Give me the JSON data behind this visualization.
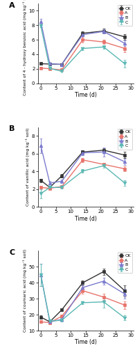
{
  "time": [
    0,
    3,
    7,
    14,
    21,
    28
  ],
  "panel_A": {
    "title": "A",
    "ylabel": "Content of 4 - hydroxy benzoic acid (mg kg⁻¹ soil)",
    "ylim": [
      0,
      11
    ],
    "yticks": [
      0,
      2,
      4,
      6,
      8,
      10
    ],
    "CK": {
      "y": [
        2.7,
        2.65,
        2.6,
        6.9,
        7.2,
        6.4
      ],
      "yerr": [
        0.15,
        0.15,
        0.15,
        0.3,
        0.3,
        0.4
      ]
    },
    "A": {
      "y": [
        2.1,
        2.0,
        1.85,
        6.0,
        5.7,
        4.8
      ],
      "yerr": [
        0.15,
        0.1,
        0.1,
        0.35,
        0.3,
        0.5
      ]
    },
    "B": {
      "y": [
        8.5,
        2.7,
        2.6,
        6.7,
        7.15,
        5.5
      ],
      "yerr": [
        0.35,
        0.15,
        0.15,
        0.25,
        0.3,
        0.4
      ]
    },
    "C": {
      "y": [
        7.9,
        2.05,
        1.65,
        4.8,
        5.0,
        2.7
      ],
      "yerr": [
        0.2,
        0.1,
        0.1,
        0.2,
        0.2,
        0.5
      ]
    }
  },
  "panel_B": {
    "title": "B",
    "ylabel": "Content of vanillic acid (mg kg⁻¹ soil)",
    "ylim": [
      0,
      9
    ],
    "yticks": [
      0,
      2,
      4,
      6,
      8
    ],
    "CK": {
      "y": [
        3.0,
        2.2,
        3.5,
        6.2,
        6.4,
        5.85
      ],
      "yerr": [
        0.2,
        0.15,
        0.2,
        0.2,
        0.2,
        0.35
      ]
    },
    "A": {
      "y": [
        2.2,
        2.1,
        2.3,
        5.3,
        4.8,
        4.3
      ],
      "yerr": [
        0.15,
        0.1,
        0.15,
        0.25,
        0.2,
        0.3
      ]
    },
    "B": {
      "y": [
        6.9,
        2.7,
        2.9,
        6.1,
        6.2,
        5.1
      ],
      "yerr": [
        0.85,
        0.2,
        0.2,
        0.25,
        0.5,
        0.35
      ]
    },
    "C": {
      "y": [
        1.5,
        2.2,
        2.2,
        4.05,
        4.65,
        2.7
      ],
      "yerr": [
        0.5,
        0.15,
        0.15,
        0.2,
        0.2,
        0.3
      ]
    }
  },
  "panel_C": {
    "title": "C",
    "ylabel": "Content of coumaric acid (mg kg⁻¹ soil)",
    "ylim": [
      10,
      60
    ],
    "yticks": [
      10,
      20,
      30,
      40,
      50
    ],
    "CK": {
      "y": [
        18.5,
        15.5,
        23.0,
        40.0,
        47.0,
        35.0
      ],
      "yerr": [
        1.0,
        0.8,
        1.0,
        1.5,
        2.0,
        3.5
      ]
    },
    "A": {
      "y": [
        15.5,
        15.0,
        19.0,
        35.0,
        31.0,
        26.0
      ],
      "yerr": [
        0.8,
        0.8,
        0.8,
        2.0,
        2.0,
        2.5
      ]
    },
    "B": {
      "y": [
        45.0,
        15.5,
        17.0,
        37.0,
        41.0,
        33.0
      ],
      "yerr": [
        7.0,
        0.8,
        0.8,
        1.8,
        2.0,
        3.0
      ]
    },
    "C": {
      "y": [
        45.0,
        16.0,
        16.5,
        27.5,
        28.0,
        18.0
      ],
      "yerr": [
        7.0,
        0.8,
        0.8,
        1.0,
        3.5,
        1.5
      ]
    }
  },
  "colors": {
    "CK": "#333333",
    "A": "#E8736B",
    "B": "#7B7BCE",
    "C": "#5BB8B4"
  },
  "markers": {
    "CK": "s",
    "A": "s",
    "B": "^",
    "C": "v"
  },
  "linestyles": {
    "CK": "-",
    "A": "-",
    "B": "-",
    "C": "-"
  },
  "xlabel": "Time (d)",
  "markersize": 3.5,
  "linewidth": 1.0,
  "capsize": 1.5,
  "elinewidth": 0.7
}
